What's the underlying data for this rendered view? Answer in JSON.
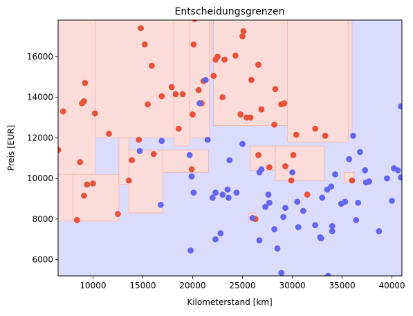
{
  "chart_data": {
    "type": "scatter",
    "title": "Entscheidungsgrenzen",
    "xlabel": "Kilometerstand [km]",
    "ylabel": "Preis [EUR]",
    "xlim": [
      6500,
      41000
    ],
    "ylim": [
      5200,
      17800
    ],
    "xticks": [
      10000,
      15000,
      20000,
      25000,
      30000,
      35000,
      40000
    ],
    "yticks": [
      6000,
      8000,
      10000,
      12000,
      14000,
      16000
    ],
    "xtick_labels": [
      "10000",
      "15000",
      "20000",
      "25000",
      "30000",
      "35000",
      "40000"
    ],
    "ytick_labels": [
      "6000",
      "8000",
      "10000",
      "12000",
      "14000",
      "16000"
    ],
    "grid": false,
    "legend": "none",
    "colors": {
      "red_points": "#e8523a",
      "blue_points": "#6466f2",
      "red_region": "#fbdcd8",
      "blue_region": "#dcdcff",
      "region_edge_red": "#f3a8a0",
      "region_edge_blue": "#b9b9f3"
    },
    "decision_regions": {
      "description_units": "data",
      "red": [
        [
          6500,
          10200,
          8000,
          17800
        ],
        [
          6500,
          8400,
          7900,
          10200
        ],
        [
          8000,
          12600,
          7900,
          10200
        ],
        [
          12600,
          13600,
          9700,
          12000
        ],
        [
          13600,
          17000,
          8300,
          11400
        ],
        [
          17000,
          21600,
          10300,
          11400
        ],
        [
          10200,
          21700,
          12000,
          17800
        ],
        [
          18100,
          19700,
          11600,
          17800
        ],
        [
          21700,
          21900,
          15700,
          17800
        ],
        [
          22100,
          29500,
          12600,
          17800
        ],
        [
          29500,
          35600,
          11800,
          17800
        ],
        [
          35600,
          36000,
          12000,
          17800
        ],
        [
          25800,
          28300,
          10400,
          11600
        ],
        [
          28300,
          33200,
          9900,
          11600
        ],
        [
          35200,
          36200,
          9800,
          10300
        ],
        [
          25600,
          26400,
          7900,
          8300
        ]
      ]
    },
    "series": [
      {
        "name": "",
        "color": "#e8523a",
        "points": [
          [
            6500,
            11400
          ],
          [
            7000,
            13300
          ],
          [
            8400,
            7950
          ],
          [
            8700,
            10800
          ],
          [
            8900,
            13700
          ],
          [
            9100,
            13800
          ],
          [
            9200,
            14700
          ],
          [
            9100,
            9150
          ],
          [
            9400,
            9700
          ],
          [
            10000,
            9750
          ],
          [
            10200,
            13200
          ],
          [
            11600,
            12200
          ],
          [
            12500,
            8250
          ],
          [
            13600,
            9900
          ],
          [
            13900,
            10900
          ],
          [
            14600,
            11900
          ],
          [
            14800,
            17400
          ],
          [
            15200,
            16600
          ],
          [
            15500,
            13650
          ],
          [
            15900,
            15550
          ],
          [
            16100,
            11200
          ],
          [
            16900,
            14050
          ],
          [
            17900,
            14500
          ],
          [
            18300,
            14150
          ],
          [
            18600,
            12450
          ],
          [
            19000,
            14150
          ],
          [
            19900,
            10450
          ],
          [
            20000,
            13150
          ],
          [
            20100,
            16600
          ],
          [
            20200,
            17850
          ],
          [
            20600,
            14350
          ],
          [
            20900,
            13700
          ],
          [
            21100,
            14800
          ],
          [
            22100,
            15050
          ],
          [
            22300,
            15850
          ],
          [
            22500,
            16000
          ],
          [
            23000,
            14000
          ],
          [
            23200,
            15850
          ],
          [
            24300,
            16050
          ],
          [
            24800,
            13150
          ],
          [
            25000,
            17000
          ],
          [
            25100,
            17250
          ],
          [
            25400,
            13000
          ],
          [
            25800,
            13000
          ],
          [
            25900,
            14850
          ],
          [
            26300,
            8000
          ],
          [
            26600,
            11150
          ],
          [
            26600,
            15600
          ],
          [
            26900,
            13400
          ],
          [
            27700,
            10550
          ],
          [
            28200,
            12650
          ],
          [
            28300,
            14400
          ],
          [
            28900,
            13650
          ],
          [
            29200,
            13700
          ],
          [
            29300,
            10600
          ],
          [
            29900,
            9900
          ],
          [
            30100,
            11150
          ],
          [
            30400,
            12150
          ],
          [
            31500,
            9200
          ],
          [
            32300,
            12450
          ],
          [
            33300,
            12100
          ],
          [
            36000,
            9900
          ]
        ]
      },
      {
        "name": "",
        "color": "#6466f2",
        "points": [
          [
            14700,
            11350
          ],
          [
            16800,
            8700
          ],
          [
            16900,
            11850
          ],
          [
            19700,
            11150
          ],
          [
            19800,
            6450
          ],
          [
            19900,
            10100
          ],
          [
            20100,
            9300
          ],
          [
            20700,
            13700
          ],
          [
            21300,
            14850
          ],
          [
            21500,
            11900
          ],
          [
            22000,
            9050
          ],
          [
            22300,
            9300
          ],
          [
            22300,
            7000
          ],
          [
            22800,
            7300
          ],
          [
            23000,
            9200
          ],
          [
            23500,
            9450
          ],
          [
            23600,
            9050
          ],
          [
            23700,
            10900
          ],
          [
            24400,
            9300
          ],
          [
            25000,
            11700
          ],
          [
            26000,
            8050
          ],
          [
            26700,
            6950
          ],
          [
            26700,
            10300
          ],
          [
            26900,
            10450
          ],
          [
            27300,
            8600
          ],
          [
            27600,
            9200
          ],
          [
            27700,
            8800
          ],
          [
            28200,
            7500
          ],
          [
            28500,
            6550
          ],
          [
            28900,
            5350
          ],
          [
            29100,
            8100
          ],
          [
            29300,
            8550
          ],
          [
            30000,
            10300
          ],
          [
            30500,
            8850
          ],
          [
            30600,
            7600
          ],
          [
            31100,
            8400
          ],
          [
            32300,
            7700
          ],
          [
            32800,
            7100
          ],
          [
            32900,
            7050
          ],
          [
            33000,
            9050
          ],
          [
            33500,
            9450
          ],
          [
            33600,
            5200
          ],
          [
            33900,
            9600
          ],
          [
            34000,
            7400
          ],
          [
            34000,
            7650
          ],
          [
            34300,
            10200
          ],
          [
            34900,
            8750
          ],
          [
            35300,
            8850
          ],
          [
            35700,
            10950
          ],
          [
            36100,
            12100
          ],
          [
            36400,
            7950
          ],
          [
            36600,
            8800
          ],
          [
            36800,
            11300
          ],
          [
            37300,
            10400
          ],
          [
            37400,
            9800
          ],
          [
            37700,
            9850
          ],
          [
            38700,
            7400
          ],
          [
            39500,
            10000
          ],
          [
            40000,
            8900
          ],
          [
            40200,
            10500
          ],
          [
            40600,
            10400
          ],
          [
            40900,
            13550
          ],
          [
            40900,
            10050
          ]
        ]
      }
    ]
  }
}
